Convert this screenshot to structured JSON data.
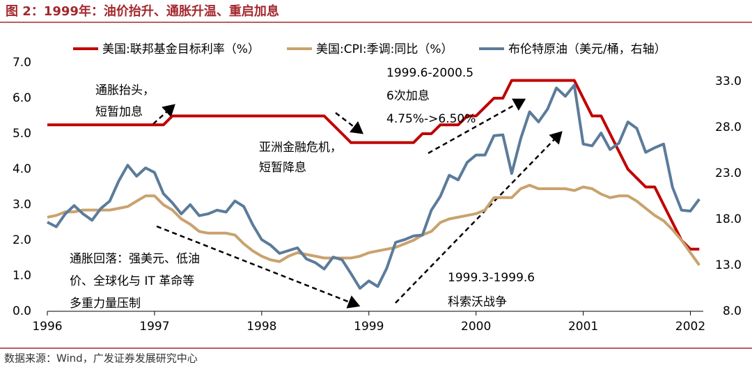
{
  "header": {
    "title": "图 2：1999年：油价抬升、通胀升温、重启加息"
  },
  "chart_data": {
    "type": "line",
    "x": [
      1996,
      1996.083,
      1996.167,
      1996.25,
      1996.333,
      1996.417,
      1996.5,
      1996.583,
      1996.667,
      1996.75,
      1996.833,
      1996.917,
      1997,
      1997.083,
      1997.167,
      1997.25,
      1997.333,
      1997.417,
      1997.5,
      1997.583,
      1997.667,
      1997.75,
      1997.833,
      1997.917,
      1998,
      1998.083,
      1998.167,
      1998.25,
      1998.333,
      1998.417,
      1998.5,
      1998.583,
      1998.667,
      1998.75,
      1998.833,
      1998.917,
      1999,
      1999.083,
      1999.167,
      1999.25,
      1999.333,
      1999.417,
      1999.5,
      1999.583,
      1999.667,
      1999.75,
      1999.833,
      1999.917,
      2000,
      2000.083,
      2000.167,
      2000.25,
      2000.333,
      2000.417,
      2000.5,
      2000.583,
      2000.667,
      2000.75,
      2000.833,
      2000.917,
      2001,
      2001.083,
      2001.167,
      2001.25,
      2001.333,
      2001.417,
      2001.5,
      2001.583,
      2001.667,
      2001.75,
      2001.833,
      2001.917,
      2002,
      2002.083
    ],
    "series": [
      {
        "name": "美国:联邦基金目标利率（%）",
        "color": "#c00000",
        "values": [
          5.25,
          5.25,
          5.25,
          5.25,
          5.25,
          5.25,
          5.25,
          5.25,
          5.25,
          5.25,
          5.25,
          5.25,
          5.25,
          5.25,
          5.5,
          5.5,
          5.5,
          5.5,
          5.5,
          5.5,
          5.5,
          5.5,
          5.5,
          5.5,
          5.5,
          5.5,
          5.5,
          5.5,
          5.5,
          5.5,
          5.5,
          5.5,
          5.25,
          5.0,
          4.75,
          4.75,
          4.75,
          4.75,
          4.75,
          4.75,
          4.75,
          4.75,
          5.0,
          5.0,
          5.25,
          5.25,
          5.25,
          5.5,
          5.5,
          5.75,
          6.0,
          6.0,
          6.5,
          6.5,
          6.5,
          6.5,
          6.5,
          6.5,
          6.5,
          6.5,
          6.0,
          5.5,
          5.5,
          5.0,
          4.5,
          4.0,
          3.75,
          3.5,
          3.5,
          3.0,
          2.5,
          2.0,
          1.75,
          1.75
        ]
      },
      {
        "name": "美国:CPI:季调:同比（%）",
        "color": "#c9a26e",
        "values": [
          2.65,
          2.7,
          2.8,
          2.8,
          2.85,
          2.85,
          2.85,
          2.85,
          2.9,
          2.95,
          3.1,
          3.25,
          3.25,
          3.0,
          2.85,
          2.6,
          2.45,
          2.25,
          2.2,
          2.2,
          2.2,
          2.15,
          1.9,
          1.7,
          1.55,
          1.45,
          1.4,
          1.55,
          1.65,
          1.6,
          1.55,
          1.5,
          1.5,
          1.5,
          1.5,
          1.55,
          1.65,
          1.7,
          1.75,
          1.8,
          1.9,
          2.0,
          2.15,
          2.25,
          2.5,
          2.6,
          2.65,
          2.7,
          2.75,
          2.85,
          3.2,
          3.2,
          3.2,
          3.45,
          3.55,
          3.45,
          3.45,
          3.45,
          3.45,
          3.4,
          3.5,
          3.45,
          3.3,
          3.2,
          3.25,
          3.25,
          3.1,
          2.9,
          2.7,
          2.55,
          2.3,
          2.0,
          1.65,
          1.3
        ]
      },
      {
        "name": "布伦特原油（美元/桶，右轴）",
        "color": "#5b7b9a",
        "axis": "y2",
        "values": [
          17.7,
          17.2,
          18.6,
          19.5,
          18.6,
          17.9,
          19.2,
          20.0,
          22.2,
          23.9,
          22.7,
          23.6,
          23.1,
          20.8,
          19.8,
          18.6,
          19.6,
          18.4,
          18.6,
          19.0,
          18.8,
          20.0,
          19.4,
          17.4,
          15.8,
          15.2,
          14.3,
          14.6,
          14.9,
          13.7,
          13.3,
          12.6,
          13.9,
          13.6,
          12.1,
          10.5,
          11.3,
          10.7,
          12.7,
          15.5,
          15.8,
          16.2,
          16.3,
          19.0,
          20.5,
          22.8,
          22.3,
          24.2,
          25.0,
          25.0,
          27.1,
          27.2,
          23.0,
          26.8,
          29.7,
          28.6,
          30.0,
          32.3,
          31.4,
          32.6,
          26.2,
          26.0,
          27.4,
          25.6,
          26.3,
          28.6,
          27.9,
          25.3,
          25.8,
          26.2,
          21.5,
          19.0,
          18.9,
          20.2
        ]
      }
    ],
    "xlim": [
      1996,
      2002.12
    ],
    "xticks": [
      1996,
      1997,
      1998,
      1999,
      2000,
      2001,
      2002
    ],
    "ylim": [
      0,
      7
    ],
    "yticks": [
      {
        "value": 0,
        "label": "0.0"
      },
      {
        "value": 1,
        "label": "1.0"
      },
      {
        "value": 2,
        "label": "2.0"
      },
      {
        "value": 3,
        "label": "3.0"
      },
      {
        "value": 4,
        "label": "4.0"
      },
      {
        "value": 5,
        "label": "5.0"
      },
      {
        "value": 6,
        "label": "6.0"
      },
      {
        "value": 7,
        "label": "7.0"
      }
    ],
    "y2lim": [
      8,
      35.05
    ],
    "y2ticks": [
      {
        "value": 8,
        "label": "8.0"
      },
      {
        "value": 13,
        "label": "13.0"
      },
      {
        "value": 18,
        "label": "18.0"
      },
      {
        "value": 23,
        "label": "23.0"
      },
      {
        "value": 28,
        "label": "28.0"
      },
      {
        "value": 33,
        "label": "33.0"
      }
    ],
    "legend": "top",
    "annotations": [
      {
        "lines": [
          "通胀抬头，",
          "短暂加息"
        ]
      },
      {
        "lines": [
          "亚洲金融危机，",
          "短暂降息"
        ]
      },
      {
        "lines": [
          "1999.6-2000.5",
          "6次加息",
          "4.75%->6.50%"
        ]
      },
      {
        "lines": [
          "通胀回落：强美元、低油",
          "价、全球化与 IT 革命等",
          "多重力量压制"
        ]
      },
      {
        "lines": [
          "1999.3-1999.6",
          "科索沃战争"
        ]
      }
    ]
  },
  "footer": {
    "source": "数据来源：Wind，广发证券发展研究中心"
  }
}
